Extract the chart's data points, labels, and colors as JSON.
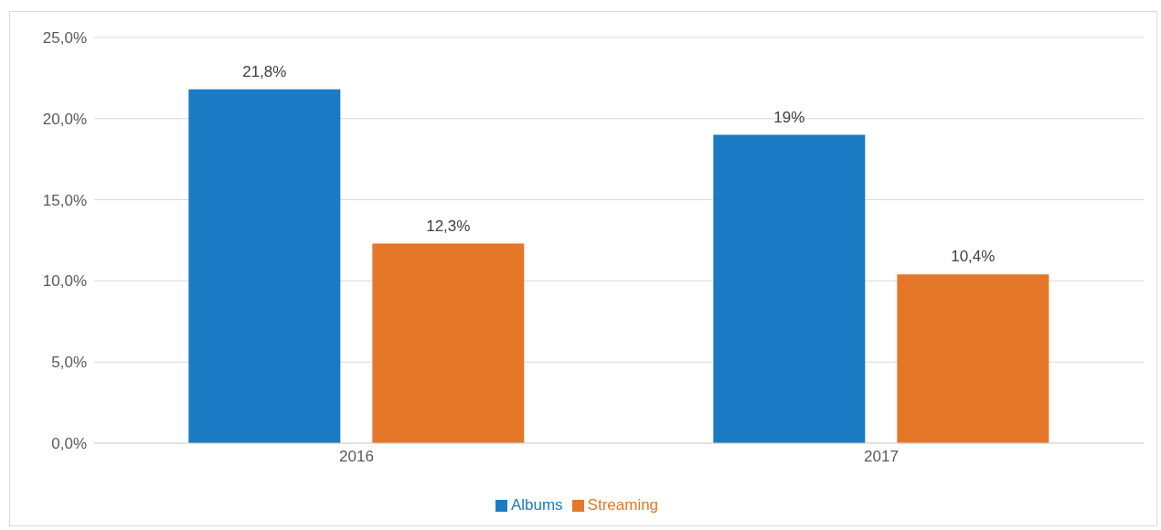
{
  "chart_data": {
    "type": "bar",
    "categories": [
      "2016",
      "2017"
    ],
    "series": [
      {
        "name": "Albums",
        "color": "#1a7ac4",
        "values": [
          21.8,
          19
        ],
        "value_labels": [
          "21,8%",
          "19%"
        ]
      },
      {
        "name": "Streaming",
        "color": "#e57728",
        "values": [
          12.3,
          10.4
        ],
        "value_labels": [
          "12,3%",
          "10,4%"
        ]
      }
    ],
    "ylim": [
      0,
      25
    ],
    "yticks": [
      {
        "value": 0,
        "label": "0,0%"
      },
      {
        "value": 5,
        "label": "5,0%"
      },
      {
        "value": 10,
        "label": "10,0%"
      },
      {
        "value": 15,
        "label": "15,0%"
      },
      {
        "value": 20,
        "label": "20,0%"
      },
      {
        "value": 25,
        "label": "25,0%"
      }
    ],
    "grid": "y",
    "legend": "bottom"
  }
}
